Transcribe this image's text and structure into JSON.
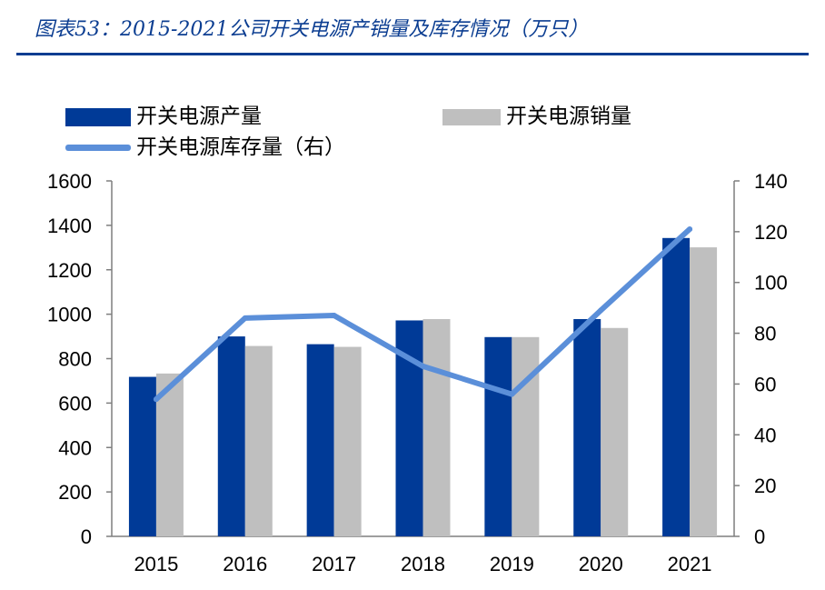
{
  "header": {
    "title": "图表53：2015-2021公司开关电源产销量及库存情况（万只）"
  },
  "chart_data": {
    "type": "bar",
    "title": "图表53：2015-2021公司开关电源产销量及库存情况（万只）",
    "categories": [
      "2015",
      "2016",
      "2017",
      "2018",
      "2019",
      "2020",
      "2021"
    ],
    "series": [
      {
        "name": "开关电源产量",
        "type": "bar",
        "axis": "left",
        "color": "#003a97",
        "values": [
          718,
          900,
          865,
          972,
          897,
          978,
          1343
        ]
      },
      {
        "name": "开关电源销量",
        "type": "bar",
        "axis": "left",
        "color": "#bfbfbf",
        "values": [
          733,
          857,
          853,
          978,
          897,
          938,
          1301
        ]
      },
      {
        "name": "开关电源库存量（右）",
        "type": "line",
        "axis": "right",
        "color": "#5b8fd9",
        "values": [
          54,
          86,
          87,
          67,
          56,
          89,
          121
        ]
      }
    ],
    "y_left": {
      "min": 0,
      "max": 1600,
      "ticks": [
        0,
        200,
        400,
        600,
        800,
        1000,
        1200,
        1400,
        1600
      ]
    },
    "y_right": {
      "min": 0,
      "max": 140,
      "ticks": [
        0,
        20,
        40,
        60,
        80,
        100,
        120,
        140
      ]
    },
    "grid": false,
    "legend_position": "top-left"
  },
  "legend": {
    "production": "开关电源产量",
    "sales": "开关电源销量",
    "inventory": "开关电源库存量（右）"
  }
}
